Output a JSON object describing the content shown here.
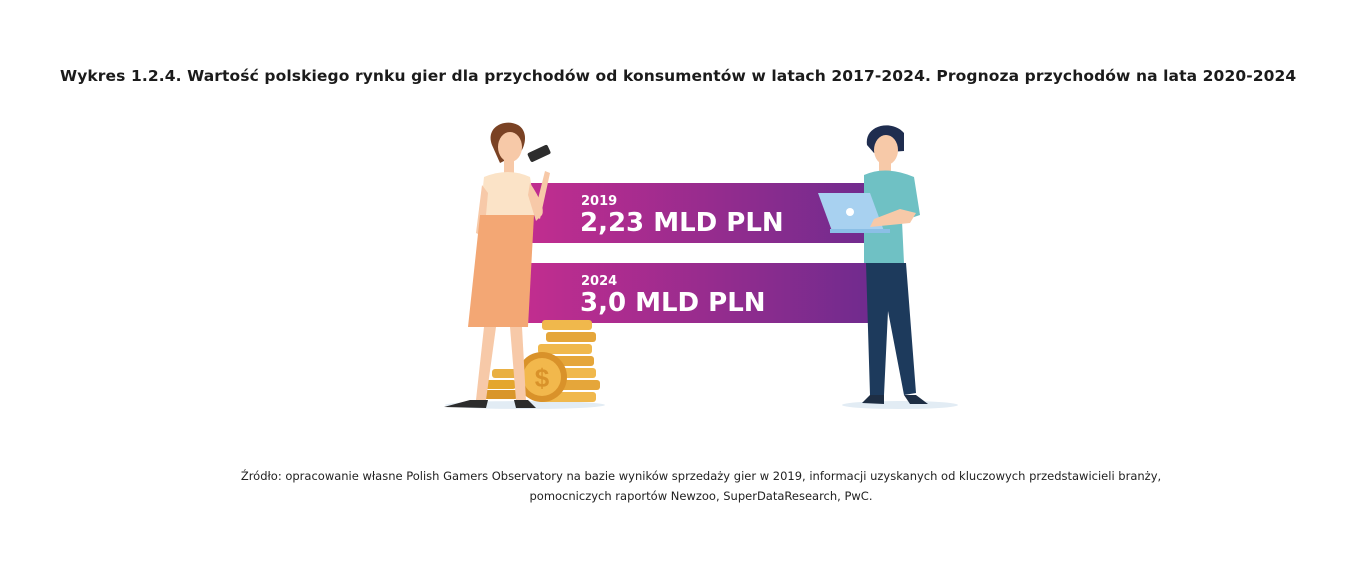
{
  "title": "Wykres 1.2.4. Wartość polskiego rynku gier dla przychodów od konsumentów w latach 2017-2024. Prognoza przychodów na lata 2020-2024",
  "chart_data": {
    "type": "bar",
    "categories": [
      "2019",
      "2024"
    ],
    "values": [
      2.23,
      3.0
    ],
    "value_labels": [
      "2,23 MLD PLN",
      "3,0 MLD PLN"
    ],
    "unit": "MLD PLN",
    "colors": {
      "bar_start": "#c22d8f",
      "bar_end": "#6e2b8e",
      "label": "#ffffff"
    }
  },
  "source": {
    "line1": "Źródło: opracowanie własne Polish Gamers Observatory na bazie wyników sprzedaży gier w 2019, informacji uzyskanych od kluczowych przedstawicieli branży,",
    "line2": "pomocniczych raportów Newzoo, SuperDataResearch, PwC."
  },
  "icons": [
    "woman-with-phone-icon",
    "man-with-laptop-icon",
    "coin-stack-icon",
    "dollar-coin-icon"
  ]
}
